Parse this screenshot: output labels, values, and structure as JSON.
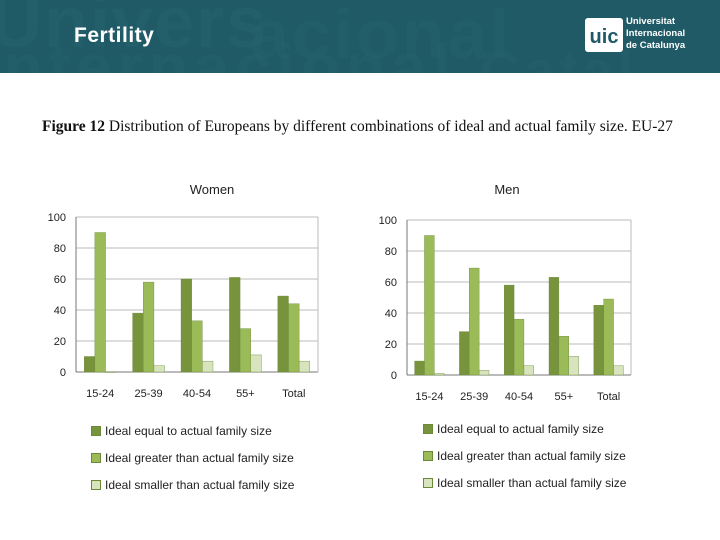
{
  "header": {
    "title": "Fertility",
    "logo_mark": "uic",
    "logo_lines": [
      "Universitat",
      "Internacional",
      "de Catalunya"
    ],
    "watermark": [
      "Univers",
      "Internacional",
      "acional",
      "Catal"
    ],
    "background": "#1f5a66"
  },
  "figure": {
    "label": "Figure 12",
    "caption": "Distribution of Europeans by different combinations of ideal and actual family size. EU-27"
  },
  "chart_data": [
    {
      "type": "bar",
      "title": "Women",
      "categories": [
        "15-24",
        "25-39",
        "40-54",
        "55+",
        "Total"
      ],
      "ylim": [
        0,
        100
      ],
      "yticks": [
        0,
        20,
        40,
        60,
        80,
        100
      ],
      "grid": true,
      "legend_position": "bottom",
      "series": [
        {
          "name": "Ideal equal to actual family size",
          "color": "#77933c",
          "values": [
            10,
            38,
            60,
            61,
            49
          ]
        },
        {
          "name": "Ideal greater than actual family size",
          "color": "#9bbb59",
          "values": [
            90,
            58,
            33,
            28,
            44
          ]
        },
        {
          "name": "Ideal smaller than actual family size",
          "color": "#d7e4bd",
          "values": [
            0,
            4,
            7,
            11,
            7
          ]
        }
      ]
    },
    {
      "type": "bar",
      "title": "Men",
      "categories": [
        "15-24",
        "25-39",
        "40-54",
        "55+",
        "Total"
      ],
      "ylim": [
        0,
        100
      ],
      "yticks": [
        0,
        20,
        40,
        60,
        80,
        100
      ],
      "grid": true,
      "legend_position": "bottom",
      "series": [
        {
          "name": "Ideal equal to actual family size",
          "color": "#77933c",
          "values": [
            9,
            28,
            58,
            63,
            45
          ]
        },
        {
          "name": "Ideal greater than actual family size",
          "color": "#9bbb59",
          "values": [
            90,
            69,
            36,
            25,
            49
          ]
        },
        {
          "name": "Ideal smaller than actual family size",
          "color": "#d7e4bd",
          "values": [
            1,
            3,
            6,
            12,
            6
          ]
        }
      ]
    }
  ]
}
